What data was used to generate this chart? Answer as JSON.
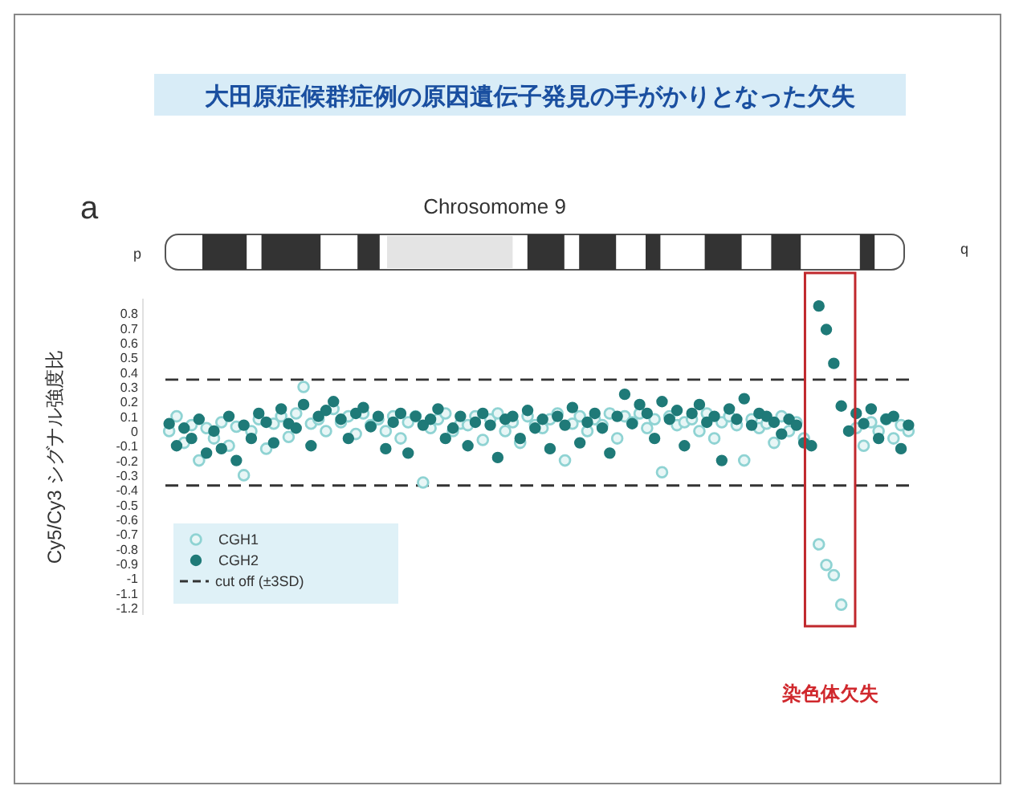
{
  "chart_data": {
    "type": "scatter",
    "title": "大田原症候群症例の原因遺伝子発見の手がかりとなった欠失",
    "ylabel": "Cy5/Cy3 シグナル強度比",
    "annotations": [
      "a",
      "Chrosomome 9",
      "p",
      "q",
      "染色体欠失"
    ],
    "categories": [
      null,
      null,
      null,
      null,
      null,
      null,
      null,
      null,
      null,
      null,
      null,
      null,
      null,
      null,
      null,
      null,
      null,
      null,
      null,
      null,
      null,
      null,
      null,
      null,
      null,
      null,
      null,
      null,
      null,
      null,
      null,
      null,
      null,
      null,
      null,
      null,
      null,
      null,
      null,
      null,
      null,
      null,
      null,
      null,
      null,
      null,
      null,
      null,
      null,
      null,
      null,
      null,
      null,
      null,
      null,
      null,
      null,
      null,
      null,
      null,
      null,
      null,
      null,
      null,
      null,
      null,
      null,
      null,
      null,
      null,
      null,
      null,
      null,
      null,
      null,
      null,
      null,
      null,
      null,
      null,
      null,
      null,
      null,
      null,
      null,
      null,
      null,
      null,
      null,
      null,
      null,
      null,
      null,
      null,
      null,
      null,
      null,
      null,
      null,
      null
    ],
    "series": [
      {
        "name": "CGH1",
        "color": "#8fd3d3",
        "marker": "circle",
        "values": [
          0,
          0.1,
          -0.08,
          0.04,
          -0.2,
          0.02,
          -0.05,
          0.06,
          -0.1,
          0.03,
          -0.3,
          0,
          0.08,
          -0.12,
          0.05,
          0.1,
          -0.04,
          0.12,
          0.3,
          0.05,
          0.08,
          0,
          0.15,
          0.06,
          0.1,
          -0.02,
          0.12,
          0.04,
          0.08,
          0,
          0.1,
          -0.05,
          0.06,
          0.1,
          -0.35,
          0.02,
          0.08,
          0.12,
          0,
          0.05,
          0.04,
          0.1,
          -0.06,
          0.08,
          0.12,
          0,
          0.06,
          -0.08,
          0.1,
          0.04,
          0.02,
          0.08,
          0.12,
          -0.2,
          0.05,
          0.1,
          0,
          0.08,
          0.04,
          0.12,
          -0.05,
          0.1,
          0.06,
          0.12,
          0.02,
          0.08,
          -0.28,
          0.1,
          0.04,
          0.06,
          0.08,
          0,
          0.12,
          -0.05,
          0.06,
          0.1,
          0.04,
          -0.2,
          0.08,
          0.02,
          0.05,
          -0.08,
          0.1,
          0,
          0.06,
          -0.05,
          null,
          -0.77,
          -0.91,
          -0.98,
          -1.18,
          null,
          0.02,
          -0.1,
          0.06,
          0,
          0.08,
          -0.05,
          0.04,
          0
        ]
      },
      {
        "name": "CGH2",
        "color": "#1f7a78",
        "marker": "circle",
        "values": [
          0.05,
          -0.1,
          0.02,
          -0.05,
          0.08,
          -0.15,
          0,
          -0.12,
          0.1,
          -0.2,
          0.04,
          -0.05,
          0.12,
          0.06,
          -0.08,
          0.15,
          0.05,
          0.02,
          0.18,
          -0.1,
          0.1,
          0.14,
          0.2,
          0.08,
          -0.05,
          0.12,
          0.16,
          0.03,
          0.1,
          -0.12,
          0.06,
          0.12,
          -0.15,
          0.1,
          0.04,
          0.08,
          0.15,
          -0.05,
          0.02,
          0.1,
          -0.1,
          0.06,
          0.12,
          0.04,
          -0.18,
          0.08,
          0.1,
          -0.05,
          0.14,
          0.02,
          0.08,
          -0.12,
          0.1,
          0.04,
          0.16,
          -0.08,
          0.06,
          0.12,
          0.02,
          -0.15,
          0.1,
          0.25,
          0.05,
          0.18,
          0.12,
          -0.05,
          0.2,
          0.08,
          0.14,
          -0.1,
          0.12,
          0.18,
          0.06,
          0.1,
          -0.2,
          0.15,
          0.08,
          0.22,
          0.04,
          0.12,
          0.1,
          0.06,
          -0.02,
          0.08,
          0.04,
          -0.08,
          -0.1,
          0.85,
          0.69,
          0.46,
          0.17,
          0,
          0.12,
          0.05,
          0.15,
          -0.05,
          0.08,
          0.1,
          -0.12,
          0.04
        ]
      }
    ],
    "ylim": [
      -1.25,
      0.9
    ],
    "yticks": [
      0.8,
      0.7,
      0.6,
      0.5,
      0.4,
      0.3,
      0.2,
      0.1,
      0,
      -0.1,
      -0.2,
      -0.3,
      -0.4,
      -0.5,
      -0.6,
      -0.7,
      -0.8,
      -0.9,
      -1,
      -1.1,
      -1.2
    ],
    "ref_lines": [
      {
        "axis": "y",
        "value": 0.35,
        "label": "cut off (±3SD)",
        "color": "#333333",
        "line_style": "dashed"
      },
      {
        "axis": "y",
        "value": -0.37,
        "color": "#333333",
        "line_style": "dashed"
      }
    ],
    "legend": "bottom left",
    "tick_labels": "y",
    "grid": false
  }
}
